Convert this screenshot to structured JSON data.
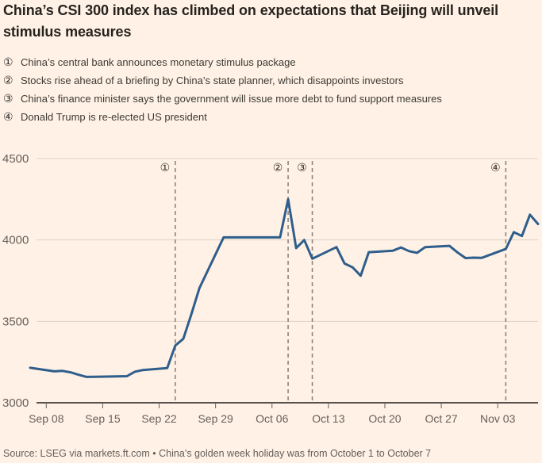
{
  "title": "China’s CSI 300 index has climbed on expectations that Beijing will unveil stimulus measures",
  "annotations": [
    {
      "marker": "①",
      "text": "China’s central bank announces monetary stimulus package"
    },
    {
      "marker": "②",
      "text": "Stocks rise ahead of a briefing by China’s state planner, which disappoints investors"
    },
    {
      "marker": "③",
      "text": "China’s finance minister says the government will issue more debt to fund support measures"
    },
    {
      "marker": "④",
      "text": "Donald Trump is re-elected US president"
    }
  ],
  "source": "Source: LSEG via markets.ft.com • China’s golden week holiday was from October 1 to October 7",
  "colors": {
    "background": "#FFF1E5",
    "line": "#2f5e8c",
    "gridline": "#ddd2c6",
    "axis": "#57514d",
    "axis_text": "#66605c",
    "event_line": "#8c857e",
    "event_text": "#33302e"
  },
  "chart_data": {
    "type": "line",
    "title": "China’s CSI 300 index",
    "xlabel": "",
    "ylabel": "",
    "x_type": "date",
    "x_range": [
      "2024-09-06",
      "2024-11-08"
    ],
    "ylim": [
      3000,
      4500
    ],
    "yticks": [
      3000,
      3500,
      4000,
      4500
    ],
    "grid": "horizontal",
    "legend": "none",
    "xticks": [
      {
        "date": "2024-09-08",
        "label": "Sep 08"
      },
      {
        "date": "2024-09-15",
        "label": "Sep 15"
      },
      {
        "date": "2024-09-22",
        "label": "Sep 22"
      },
      {
        "date": "2024-09-29",
        "label": "Sep 29"
      },
      {
        "date": "2024-10-06",
        "label": "Oct 06"
      },
      {
        "date": "2024-10-13",
        "label": "Oct 13"
      },
      {
        "date": "2024-10-20",
        "label": "Oct 20"
      },
      {
        "date": "2024-10-27",
        "label": "Oct 27"
      },
      {
        "date": "2024-11-03",
        "label": "Nov 03"
      }
    ],
    "events": [
      {
        "marker": "①",
        "date": "2024-09-24"
      },
      {
        "marker": "②",
        "date": "2024-10-08"
      },
      {
        "marker": "③",
        "date": "2024-10-11"
      },
      {
        "marker": "④",
        "date": "2024-11-04"
      }
    ],
    "series": [
      {
        "name": "CSI 300 index",
        "color": "#2f5e8c",
        "points": [
          [
            "2024-09-06",
            3215
          ],
          [
            "2024-09-09",
            3193
          ],
          [
            "2024-09-10",
            3196
          ],
          [
            "2024-09-11",
            3187
          ],
          [
            "2024-09-12",
            3172
          ],
          [
            "2024-09-13",
            3159
          ],
          [
            "2024-09-18",
            3163
          ],
          [
            "2024-09-19",
            3191
          ],
          [
            "2024-09-20",
            3201
          ],
          [
            "2024-09-23",
            3213
          ],
          [
            "2024-09-24",
            3351
          ],
          [
            "2024-09-25",
            3393
          ],
          [
            "2024-09-26",
            3545
          ],
          [
            "2024-09-27",
            3704
          ],
          [
            "2024-09-30",
            4016
          ],
          [
            "2024-10-07",
            4016
          ],
          [
            "2024-10-08",
            4250
          ],
          [
            "2024-10-09",
            3950
          ],
          [
            "2024-10-10",
            4000
          ],
          [
            "2024-10-11",
            3885
          ],
          [
            "2024-10-14",
            3956
          ],
          [
            "2024-10-15",
            3855
          ],
          [
            "2024-10-16",
            3832
          ],
          [
            "2024-10-17",
            3780
          ],
          [
            "2024-10-18",
            3925
          ],
          [
            "2024-10-21",
            3934
          ],
          [
            "2024-10-22",
            3954
          ],
          [
            "2024-10-23",
            3931
          ],
          [
            "2024-10-24",
            3921
          ],
          [
            "2024-10-25",
            3956
          ],
          [
            "2024-10-28",
            3964
          ],
          [
            "2024-10-29",
            3924
          ],
          [
            "2024-10-30",
            3889
          ],
          [
            "2024-10-31",
            3891
          ],
          [
            "2024-11-01",
            3890
          ],
          [
            "2024-11-04",
            3945
          ],
          [
            "2024-11-05",
            4048
          ],
          [
            "2024-11-06",
            4024
          ],
          [
            "2024-11-07",
            4155
          ],
          [
            "2024-11-08",
            4098
          ]
        ]
      }
    ]
  }
}
